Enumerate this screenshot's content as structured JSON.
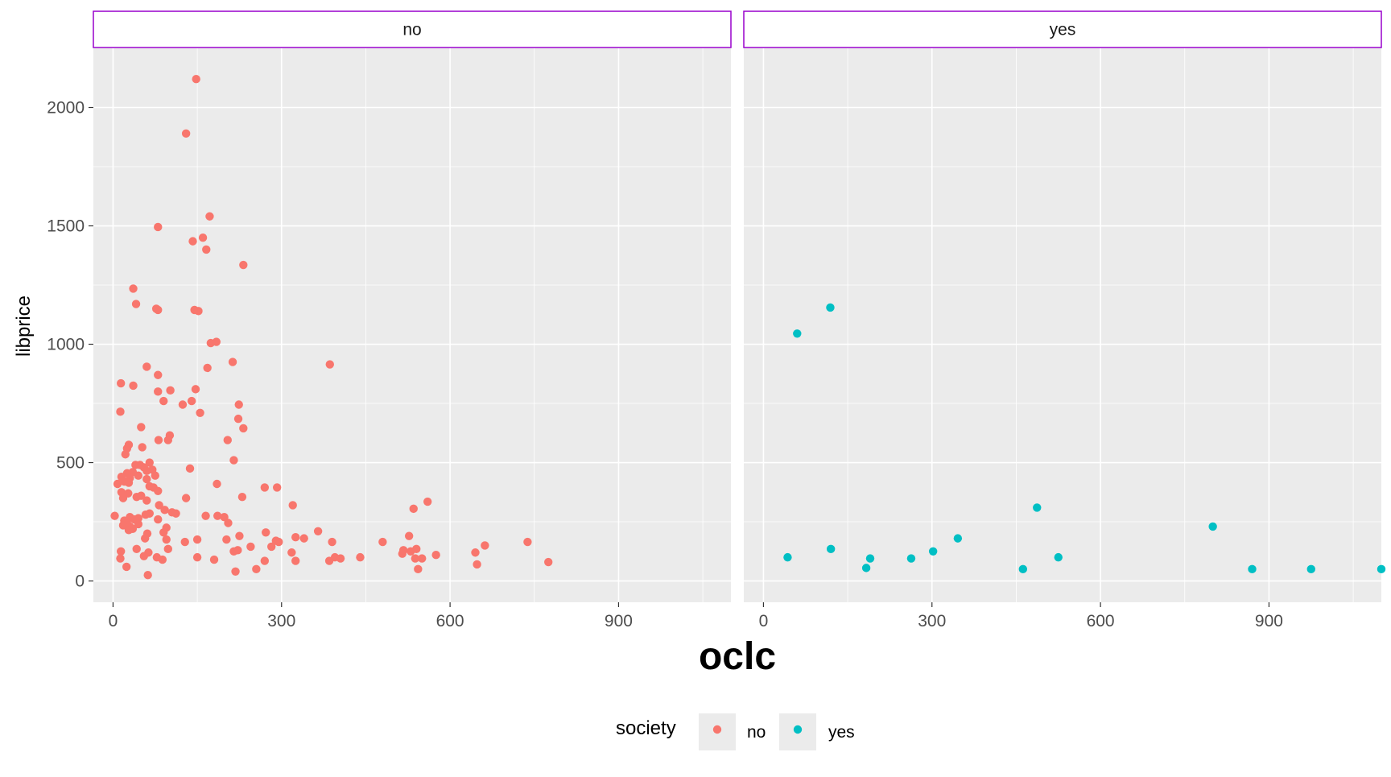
{
  "chart_data": {
    "type": "scatter",
    "facet_variable": "society",
    "xlabel": "oclc",
    "ylabel": "libprice",
    "xlim": [
      -35,
      1100
    ],
    "ylim": [
      -90,
      2250
    ],
    "x_ticks": [
      0,
      300,
      600,
      900
    ],
    "x_tick_labels": [
      "0",
      "300",
      "600",
      "900"
    ],
    "y_ticks": [
      0,
      500,
      1000,
      1500,
      2000
    ],
    "y_tick_labels": [
      "0",
      "500",
      "1000",
      "1500",
      "2000"
    ],
    "grid": true,
    "legend": {
      "title": "society",
      "position": "bottom",
      "entries": [
        {
          "label": "no",
          "color": "#F8766D"
        },
        {
          "label": "yes",
          "color": "#00BFC4"
        }
      ]
    },
    "colors": {
      "panel_background": "#EBEBEB",
      "grid_major": "#FFFFFF",
      "strip_background": "#FFFFFF",
      "strip_border": "#9900CC",
      "axis_text": "#4D4D4D"
    },
    "panels": [
      {
        "strip": "no",
        "color": "#F8766D",
        "points": [
          [
            148,
            2120
          ],
          [
            130,
            1890
          ],
          [
            80,
            1495
          ],
          [
            172,
            1540
          ],
          [
            160,
            1450
          ],
          [
            142,
            1435
          ],
          [
            166,
            1400
          ],
          [
            232,
            1335
          ],
          [
            36,
            1235
          ],
          [
            41,
            1170
          ],
          [
            77,
            1150
          ],
          [
            80,
            1145
          ],
          [
            145,
            1145
          ],
          [
            152,
            1140
          ],
          [
            184,
            1010
          ],
          [
            174,
            1005
          ],
          [
            386,
            915
          ],
          [
            213,
            925
          ],
          [
            168,
            900
          ],
          [
            60,
            905
          ],
          [
            80,
            870
          ],
          [
            14,
            835
          ],
          [
            36,
            825
          ],
          [
            147,
            810
          ],
          [
            102,
            805
          ],
          [
            80,
            800
          ],
          [
            140,
            760
          ],
          [
            90,
            760
          ],
          [
            124,
            745
          ],
          [
            224,
            745
          ],
          [
            13,
            715
          ],
          [
            155,
            710
          ],
          [
            223,
            685
          ],
          [
            232,
            645
          ],
          [
            50,
            650
          ],
          [
            101,
            615
          ],
          [
            81,
            595
          ],
          [
            98,
            595
          ],
          [
            204,
            595
          ],
          [
            28,
            575
          ],
          [
            52,
            565
          ],
          [
            25,
            560
          ],
          [
            22,
            535
          ],
          [
            215,
            510
          ],
          [
            65,
            500
          ],
          [
            40,
            490
          ],
          [
            48,
            490
          ],
          [
            137,
            475
          ],
          [
            55,
            480
          ],
          [
            70,
            470
          ],
          [
            60,
            465
          ],
          [
            35,
            460
          ],
          [
            25,
            455
          ],
          [
            45,
            445
          ],
          [
            75,
            445
          ],
          [
            15,
            440
          ],
          [
            30,
            435
          ],
          [
            60,
            430
          ],
          [
            20,
            420
          ],
          [
            28,
            415
          ],
          [
            8,
            410
          ],
          [
            185,
            410
          ],
          [
            65,
            400
          ],
          [
            72,
            395
          ],
          [
            270,
            395
          ],
          [
            292,
            395
          ],
          [
            80,
            380
          ],
          [
            15,
            375
          ],
          [
            27,
            370
          ],
          [
            50,
            360
          ],
          [
            42,
            355
          ],
          [
            18,
            350
          ],
          [
            130,
            350
          ],
          [
            230,
            355
          ],
          [
            60,
            340
          ],
          [
            320,
            320
          ],
          [
            82,
            320
          ],
          [
            535,
            305
          ],
          [
            560,
            335
          ],
          [
            92,
            300
          ],
          [
            105,
            290
          ],
          [
            112,
            285
          ],
          [
            65,
            285
          ],
          [
            58,
            280
          ],
          [
            3,
            275
          ],
          [
            165,
            275
          ],
          [
            186,
            275
          ],
          [
            198,
            270
          ],
          [
            30,
            270
          ],
          [
            45,
            265
          ],
          [
            80,
            260
          ],
          [
            38,
            260
          ],
          [
            20,
            255
          ],
          [
            25,
            245
          ],
          [
            205,
            245
          ],
          [
            45,
            240
          ],
          [
            18,
            235
          ],
          [
            30,
            230
          ],
          [
            35,
            220
          ],
          [
            95,
            225
          ],
          [
            28,
            215
          ],
          [
            90,
            205
          ],
          [
            365,
            210
          ],
          [
            272,
            205
          ],
          [
            61,
            200
          ],
          [
            225,
            190
          ],
          [
            57,
            180
          ],
          [
            95,
            175
          ],
          [
            150,
            175
          ],
          [
            202,
            175
          ],
          [
            290,
            170
          ],
          [
            128,
            165
          ],
          [
            295,
            165
          ],
          [
            390,
            165
          ],
          [
            480,
            165
          ],
          [
            738,
            165
          ],
          [
            527,
            190
          ],
          [
            540,
            135
          ],
          [
            662,
            150
          ],
          [
            282,
            145
          ],
          [
            245,
            145
          ],
          [
            318,
            120
          ],
          [
            340,
            180
          ],
          [
            325,
            185
          ],
          [
            98,
            135
          ],
          [
            42,
            135
          ],
          [
            14,
            125
          ],
          [
            222,
            130
          ],
          [
            215,
            125
          ],
          [
            517,
            130
          ],
          [
            515,
            115
          ],
          [
            575,
            110
          ],
          [
            530,
            125
          ],
          [
            645,
            120
          ],
          [
            63,
            120
          ],
          [
            55,
            105
          ],
          [
            78,
            100
          ],
          [
            150,
            100
          ],
          [
            395,
            100
          ],
          [
            405,
            95
          ],
          [
            440,
            100
          ],
          [
            13,
            95
          ],
          [
            88,
            90
          ],
          [
            180,
            90
          ],
          [
            270,
            85
          ],
          [
            325,
            85
          ],
          [
            385,
            85
          ],
          [
            550,
            95
          ],
          [
            538,
            95
          ],
          [
            775,
            80
          ],
          [
            648,
            70
          ],
          [
            255,
            50
          ],
          [
            218,
            40
          ],
          [
            543,
            50
          ],
          [
            24,
            60
          ],
          [
            62,
            25
          ]
        ]
      },
      {
        "strip": "yes",
        "color": "#00BFC4",
        "points": [
          [
            60,
            1045
          ],
          [
            119,
            1155
          ],
          [
            487,
            310
          ],
          [
            800,
            230
          ],
          [
            346,
            180
          ],
          [
            120,
            135
          ],
          [
            302,
            125
          ],
          [
            43,
            100
          ],
          [
            190,
            95
          ],
          [
            525,
            100
          ],
          [
            263,
            95
          ],
          [
            183,
            55
          ],
          [
            462,
            50
          ],
          [
            870,
            50
          ],
          [
            975,
            50
          ],
          [
            1100,
            50
          ]
        ]
      }
    ]
  }
}
